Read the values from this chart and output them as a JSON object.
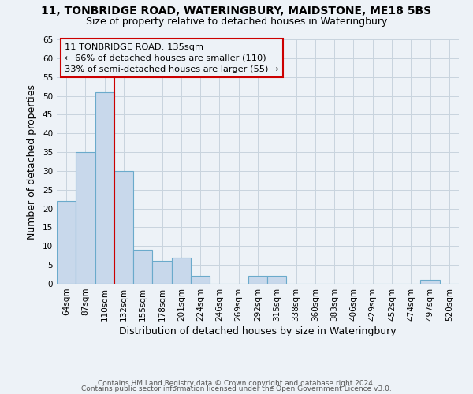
{
  "title1": "11, TONBRIDGE ROAD, WATERINGBURY, MAIDSTONE, ME18 5BS",
  "title2": "Size of property relative to detached houses in Wateringbury",
  "xlabel": "Distribution of detached houses by size in Wateringbury",
  "ylabel": "Number of detached properties",
  "bar_color": "#c8d8eb",
  "bar_edge_color": "#6aaacb",
  "categories": [
    "64sqm",
    "87sqm",
    "110sqm",
    "132sqm",
    "155sqm",
    "178sqm",
    "201sqm",
    "224sqm",
    "246sqm",
    "269sqm",
    "292sqm",
    "315sqm",
    "338sqm",
    "360sqm",
    "383sqm",
    "406sqm",
    "429sqm",
    "452sqm",
    "474sqm",
    "497sqm",
    "520sqm"
  ],
  "values": [
    22,
    35,
    51,
    30,
    9,
    6,
    7,
    2,
    0,
    0,
    2,
    2,
    0,
    0,
    0,
    0,
    0,
    0,
    0,
    1,
    0
  ],
  "ylim": [
    0,
    65
  ],
  "yticks": [
    0,
    5,
    10,
    15,
    20,
    25,
    30,
    35,
    40,
    45,
    50,
    55,
    60,
    65
  ],
  "vline_x": 2.5,
  "vline_color": "#cc0000",
  "ann_line1": "11 TONBRIDGE ROAD: 135sqm",
  "ann_line2": "← 66% of detached houses are smaller (110)",
  "ann_line3": "33% of semi-detached houses are larger (55) →",
  "ann_box_edgecolor": "#cc0000",
  "grid_color": "#c8d4de",
  "bg_color": "#edf2f7",
  "footer1": "Contains HM Land Registry data © Crown copyright and database right 2024.",
  "footer2": "Contains public sector information licensed under the Open Government Licence v3.0.",
  "title1_fontsize": 10,
  "title2_fontsize": 9,
  "xlabel_fontsize": 9,
  "ylabel_fontsize": 9,
  "tick_fontsize": 7.5,
  "footer_fontsize": 6.5
}
